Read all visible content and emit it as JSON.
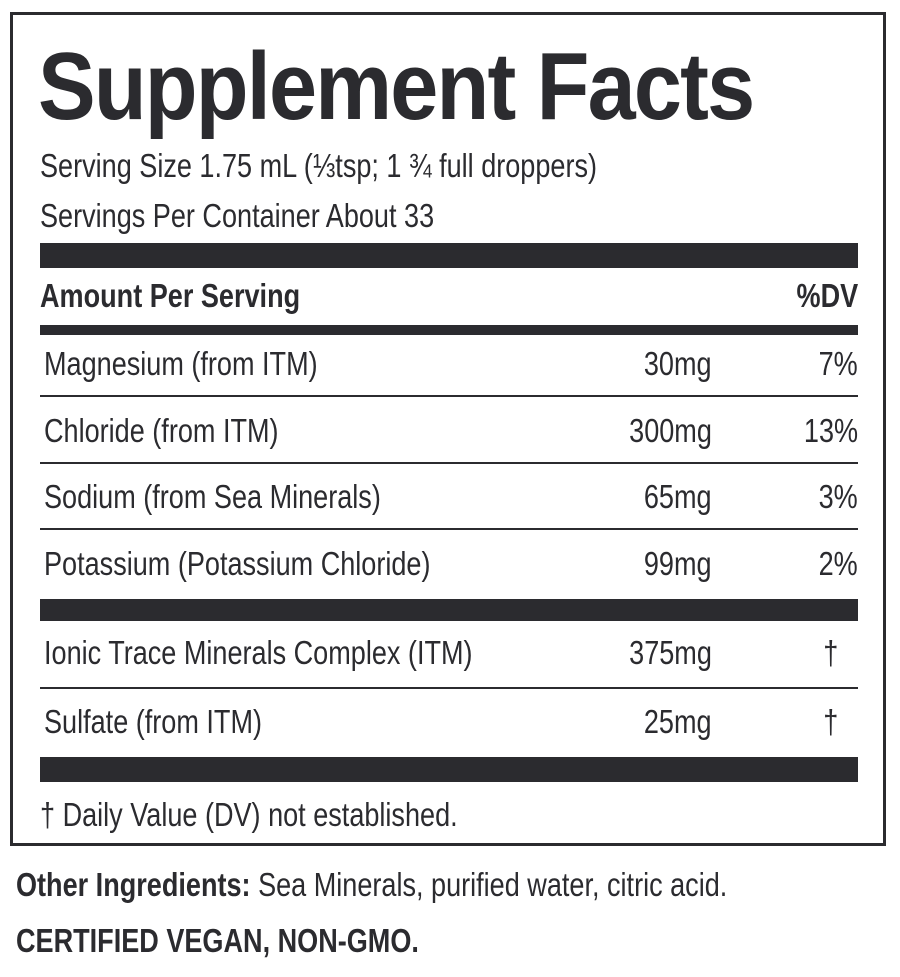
{
  "title": "Supplement Facts",
  "serving_size": "Serving Size 1.75 mL (⅓tsp; 1 ¾ full droppers)",
  "servings_per_container": "Servings Per Container About 33",
  "header": {
    "amount_label": "Amount Per Serving",
    "dv_label": "%DV"
  },
  "nutrients": [
    {
      "name": "Magnesium (from ITM)",
      "amount": "30mg",
      "dv": "7%"
    },
    {
      "name": "Chloride (from ITM)",
      "amount": "300mg",
      "dv": "13%"
    },
    {
      "name": "Sodium (from Sea Minerals)",
      "amount": "65mg",
      "dv": "3%"
    },
    {
      "name": "Potassium (Potassium Chloride)",
      "amount": "99mg",
      "dv": "2%"
    }
  ],
  "other_nutrients": [
    {
      "name": "Ionic Trace Minerals Complex (ITM)",
      "amount": "375mg",
      "dv": "†"
    },
    {
      "name": "Sulfate (from ITM)",
      "amount": "25mg",
      "dv": "†"
    }
  ],
  "footnote": "† Daily Value (DV) not established.",
  "other_ingredients": {
    "label": "Other Ingredients:",
    "text": " Sea Minerals, purified water, citric acid."
  },
  "certification": "CERTIFIED VEGAN, NON-GMO.",
  "colors": {
    "ink": "#2b2b2f",
    "background": "#ffffff"
  }
}
